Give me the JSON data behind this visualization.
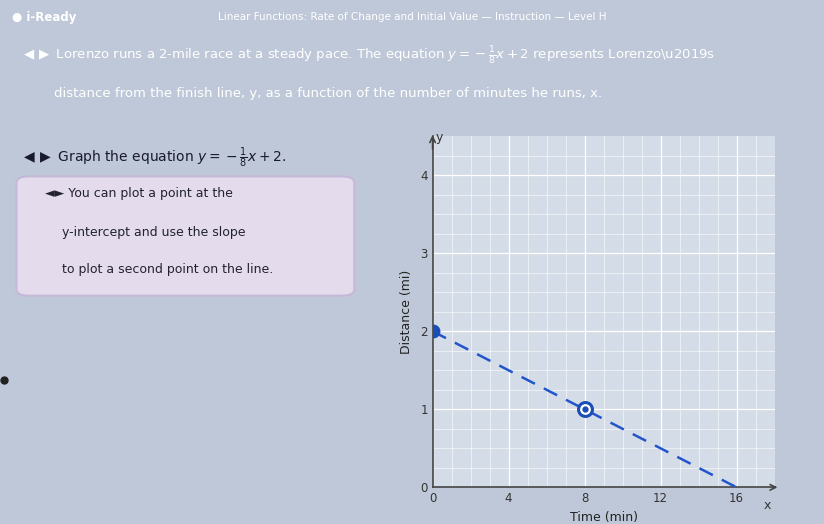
{
  "title_bar_text": "Linear Functions: Rate of Change and Initial Value — Instruction — Level H",
  "iready_text": "● i-Ready",
  "problem_line1": "◄► Lorenzo runs a 2-mile race at a steady pace. The equation y = −",
  "problem_line1b": "x + 2 represents Lorenzo’s",
  "problem_line2": "distance from the finish line, y, as a function of the number of minutes he runs, x.",
  "graph_label": "◄► Graph the equation y = −",
  "hint_line1": "◄► You can plot a point at the",
  "hint_line2": "y-intercept and use the slope",
  "hint_line3": "to plot a second point on the line.",
  "ylabel": "Distance (mi)",
  "xlabel": "Time (min)",
  "xlim": [
    0,
    18
  ],
  "ylim": [
    0,
    4.5
  ],
  "xticks": [
    0,
    4,
    8,
    12,
    16
  ],
  "yticks": [
    0,
    1,
    2,
    3,
    4
  ],
  "slope": -0.125,
  "intercept": 2.0,
  "point1": [
    0,
    2
  ],
  "point2": [
    8,
    1
  ],
  "line_color": "#2255cc",
  "dot_color": "#1a4db5",
  "dash_line_end_x": 17.5,
  "header_bg": "#2b4d9b",
  "header_text_color": "#ffffff",
  "body_bg": "#bfc8d8",
  "graph_bg": "#d4dce8",
  "hint_box_bg": "#e4dced",
  "hint_box_border": "#c5b8d8",
  "title_fontsize": 7.5,
  "iready_fontsize": 8.5,
  "problem_fontsize": 9.5,
  "graph_instruction_fontsize": 10,
  "hint_fontsize": 9
}
